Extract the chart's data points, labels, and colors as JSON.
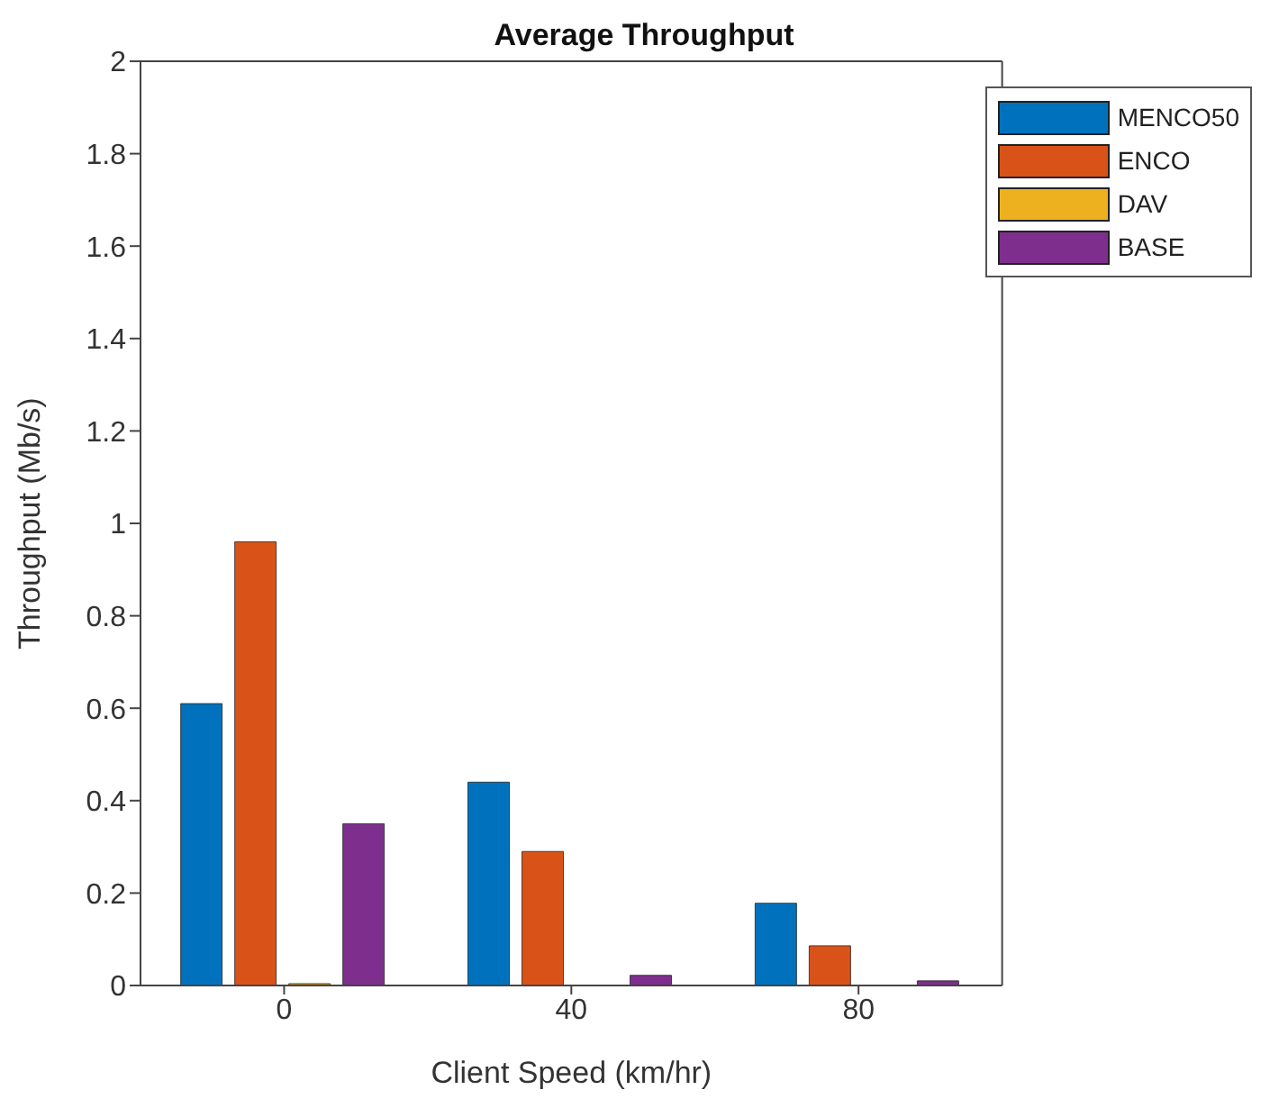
{
  "chart_data": {
    "type": "bar",
    "title": "Average Throughput",
    "xlabel": "Client Speed (km/hr)",
    "ylabel": "Throughput (Mb/s)",
    "categories": [
      "0",
      "40",
      "80"
    ],
    "series": [
      {
        "name": "MENCO50",
        "color": "#0072bd",
        "values": [
          0.61,
          0.44,
          0.178
        ]
      },
      {
        "name": "ENCO",
        "color": "#d95319",
        "values": [
          0.96,
          0.29,
          0.086
        ]
      },
      {
        "name": "DAV",
        "color": "#edb120",
        "values": [
          0.004,
          0,
          0
        ]
      },
      {
        "name": "BASE",
        "color": "#7e2f8e",
        "values": [
          0.35,
          0.022,
          0.01
        ]
      }
    ],
    "ylim": [
      0,
      2
    ],
    "yticks": [
      0,
      0.2,
      0.4,
      0.6,
      0.8,
      1,
      1.2,
      1.4,
      1.6,
      1.8,
      2
    ],
    "grid": false,
    "legend": "top right"
  }
}
